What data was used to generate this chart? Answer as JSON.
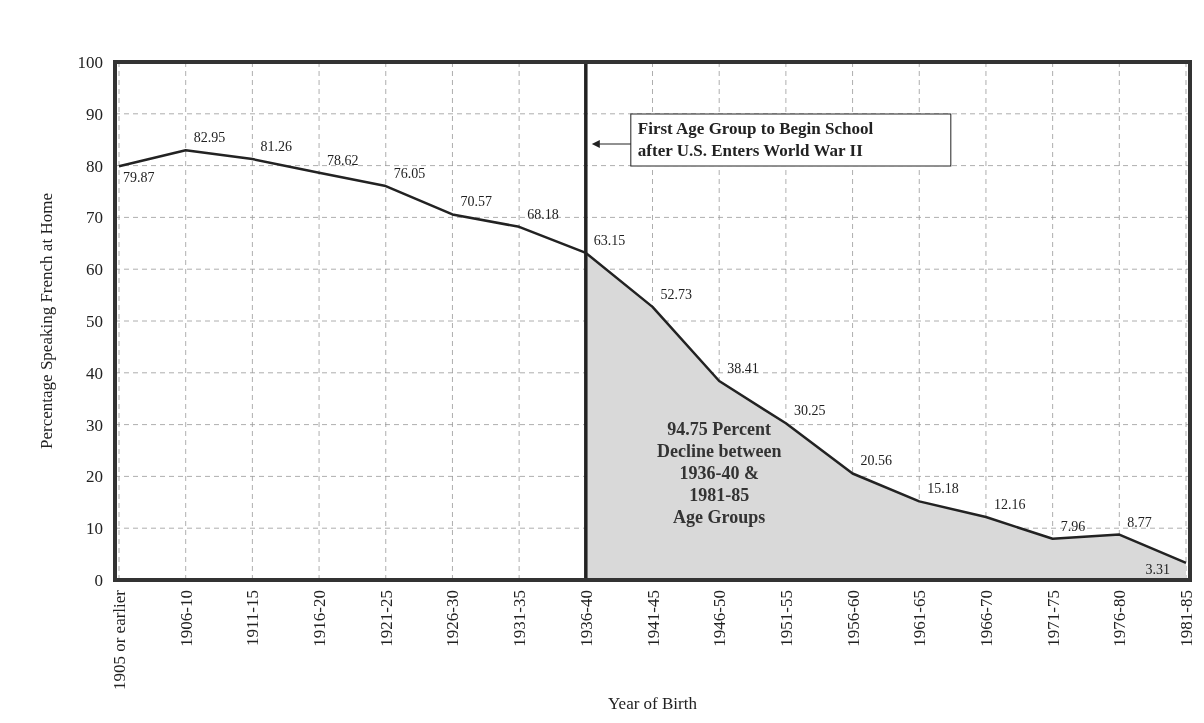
{
  "chart_data": {
    "type": "line",
    "xlabel": "Year of Birth",
    "ylabel": "Percentage Speaking French at Home",
    "categories": [
      "1905 or earlier",
      "1906-10",
      "1911-15",
      "1916-20",
      "1921-25",
      "1926-30",
      "1931-35",
      "1936-40",
      "1941-45",
      "1946-50",
      "1951-55",
      "1956-60",
      "1961-65",
      "1966-70",
      "1971-75",
      "1976-80",
      "1981-85"
    ],
    "series": [
      {
        "type": "area",
        "color": "#d9d9d9",
        "values": [
          null,
          null,
          null,
          null,
          null,
          null,
          null,
          63.15,
          52.73,
          38.41,
          30.25,
          20.56,
          15.18,
          12.16,
          7.96,
          8.77,
          3.31
        ]
      },
      {
        "color": "#222222",
        "values": [
          79.87,
          82.95,
          81.26,
          78.62,
          76.05,
          70.57,
          68.18,
          63.15,
          52.73,
          38.41,
          30.25,
          20.56,
          15.18,
          12.16,
          7.96,
          8.77,
          3.31
        ],
        "data_labels": true
      }
    ],
    "ylim": [
      0,
      100
    ],
    "yticks": [
      0,
      10,
      20,
      30,
      40,
      50,
      60,
      70,
      80,
      90,
      100
    ],
    "grid": true,
    "marker": "none",
    "line_style": "solid",
    "ref_lines": [
      {
        "axis": "x",
        "value": "1936-40",
        "label": "First Age Group to Begin School\nafter U.S. Enters World War II",
        "color": "#222222"
      }
    ],
    "annotations": [
      {
        "text": "94.75 Percent\nDecline between\n1936-40 &\n1981-85\nAge Groups"
      }
    ]
  }
}
